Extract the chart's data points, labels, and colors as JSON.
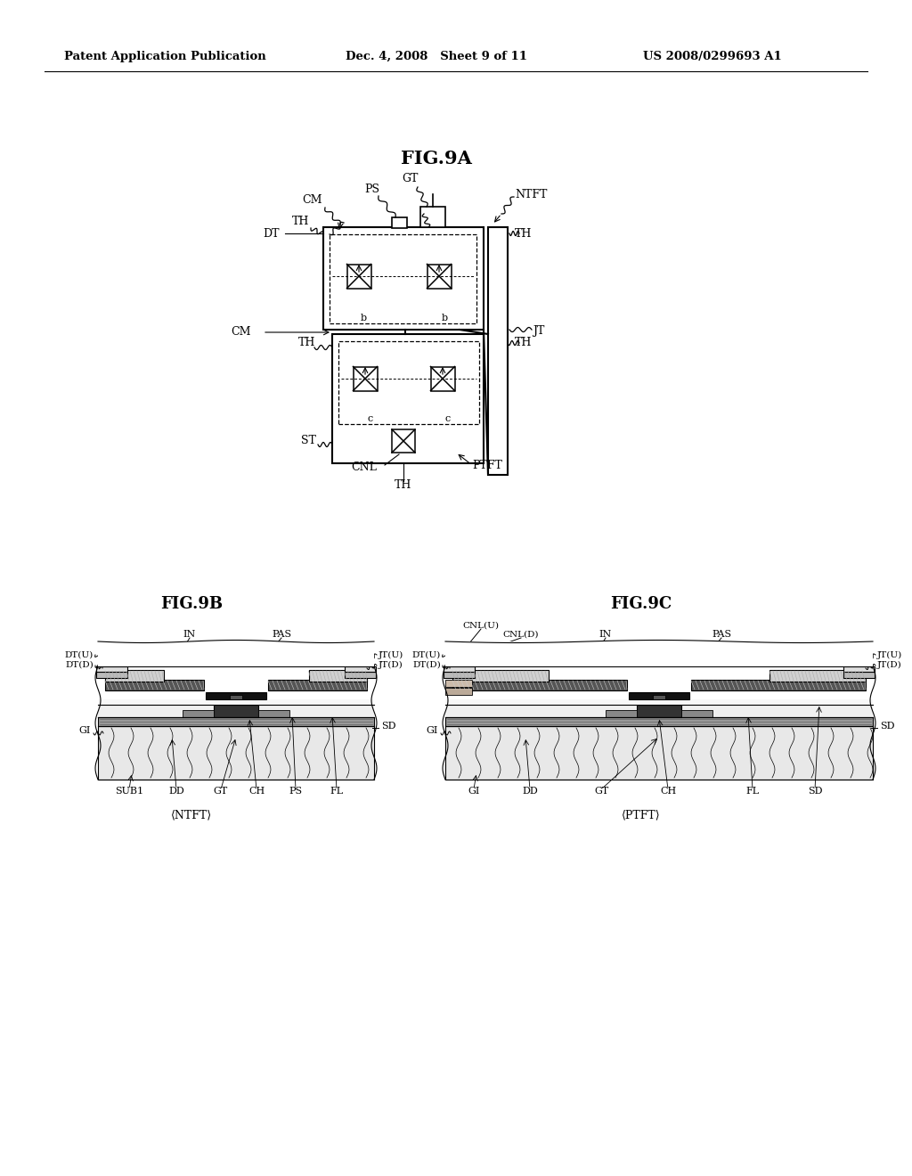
{
  "background_color": "#ffffff",
  "header_left": "Patent Application Publication",
  "header_mid": "Dec. 4, 2008   Sheet 9 of 11",
  "header_right": "US 2008/0299693 A1",
  "fig9a_title": "FIG.9A",
  "fig9b_title": "FIG.9B",
  "fig9c_title": "FIG.9C",
  "fig9b_caption": "⟨NTFT⟩",
  "fig9c_caption": "⟨PTFT⟩"
}
